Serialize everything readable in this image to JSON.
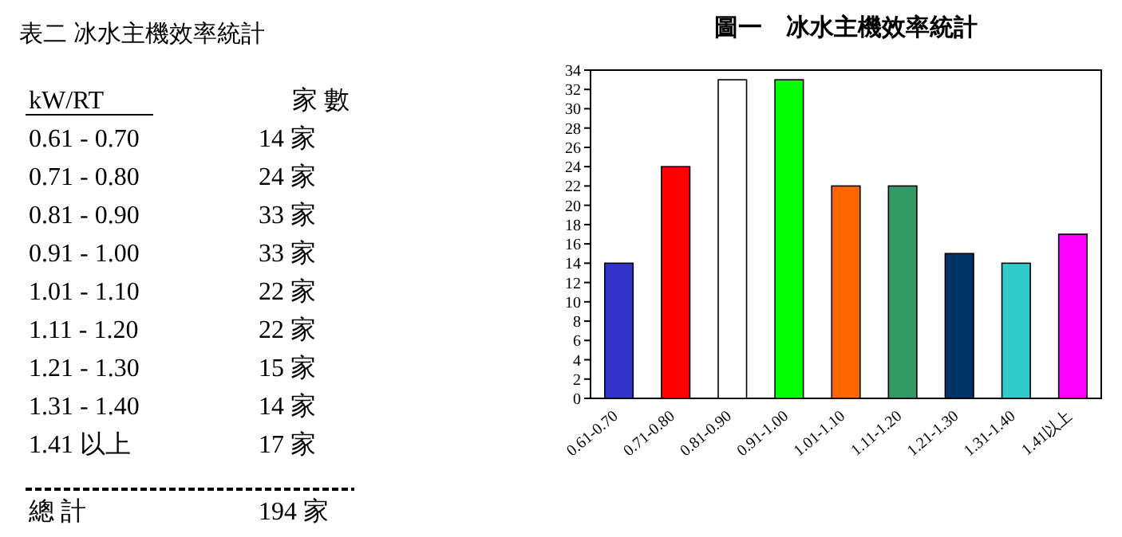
{
  "chart_data": [
    {
      "type": "other",
      "title": "表二  冰水主機效率統計",
      "annotations": [
        "kW/RT",
        "家 數",
        "0.61 - 0.70",
        "14 家",
        "0.71 - 0.80",
        "24 家",
        "0.81 - 0.90",
        "33 家",
        "0.91 - 1.00",
        "33 家",
        "1.01 - 1.10",
        "22 家",
        "1.11 - 1.20",
        "22 家",
        "1.21 - 1.30",
        "15 家",
        "1.31 - 1.40",
        "14 家",
        "1.41 以上",
        "17 家",
        "總   計",
        "194 家"
      ]
    },
    {
      "type": "bar",
      "title": "圖一　冰水主機效率統計",
      "categories": [
        "0.61-0.70",
        "0.71-0.80",
        "0.81-0.90",
        "0.91-1.00",
        "1.01-1.10",
        "1.11-1.20",
        "1.21-1.30",
        "1.31-1.40",
        "1.41以上"
      ],
      "values": [
        14,
        24,
        33,
        33,
        22,
        22,
        15,
        14,
        17
      ],
      "colors": [
        "#3333cc",
        "#ff0000",
        "#ffffff",
        "#00ff00",
        "#ff6600",
        "#339966",
        "#003366",
        "#33cccc",
        "#ff00ff"
      ],
      "ylim": [
        0,
        34
      ],
      "yticks": [
        0,
        2,
        4,
        6,
        8,
        10,
        12,
        14,
        16,
        18,
        20,
        22,
        24,
        26,
        28,
        30,
        32,
        34
      ],
      "grid": false
    }
  ]
}
